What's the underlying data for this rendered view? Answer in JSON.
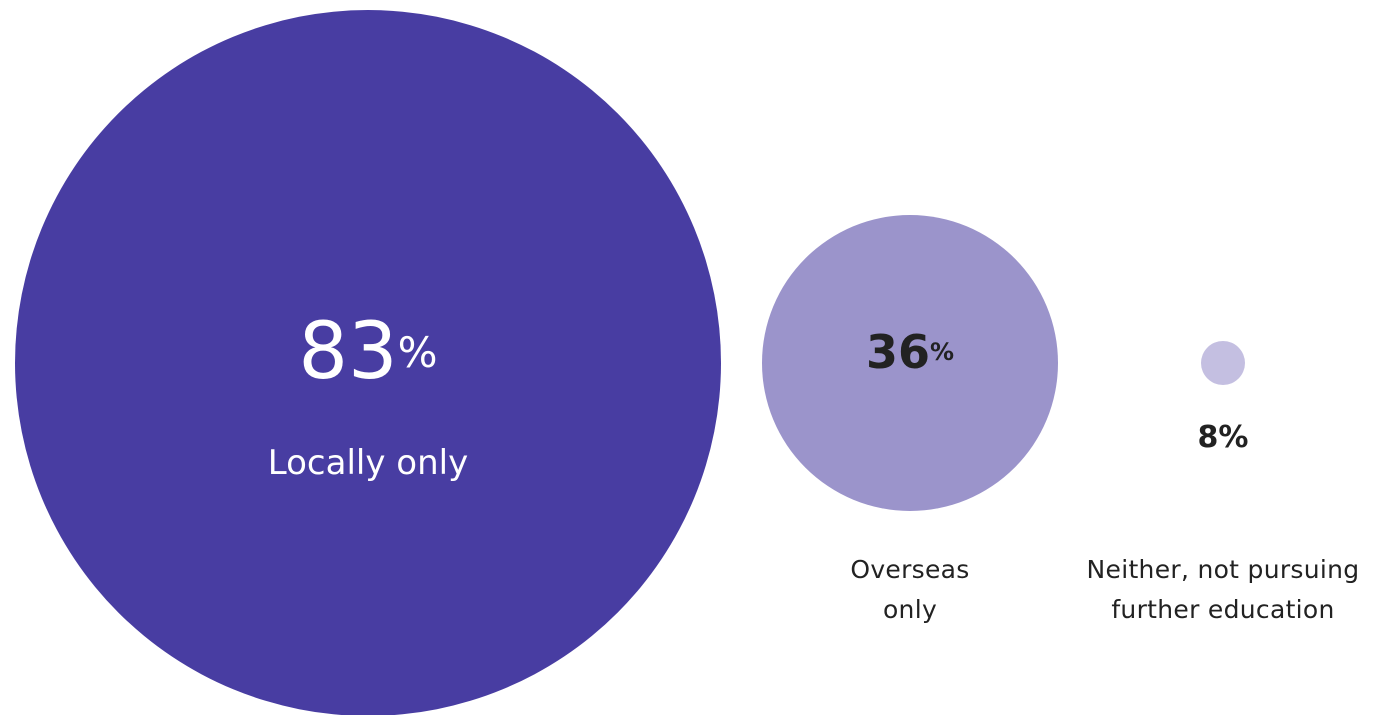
{
  "chart_data": {
    "type": "bubble",
    "unit": "%",
    "items": [
      {
        "value": 83,
        "value_text": "83",
        "label_lines": [
          "Locally only"
        ],
        "color": "#483da2",
        "text_color": "#ffffff"
      },
      {
        "value": 36,
        "value_text": "36",
        "label_lines": [
          "Overseas",
          "only"
        ],
        "color": "#9b94cb",
        "text_color": "#222222"
      },
      {
        "value": 8,
        "value_text": "8",
        "label_lines": [
          "Neither, not pursuing",
          "further education"
        ],
        "color": "#c4bfe1",
        "text_color": "#222222"
      }
    ]
  }
}
